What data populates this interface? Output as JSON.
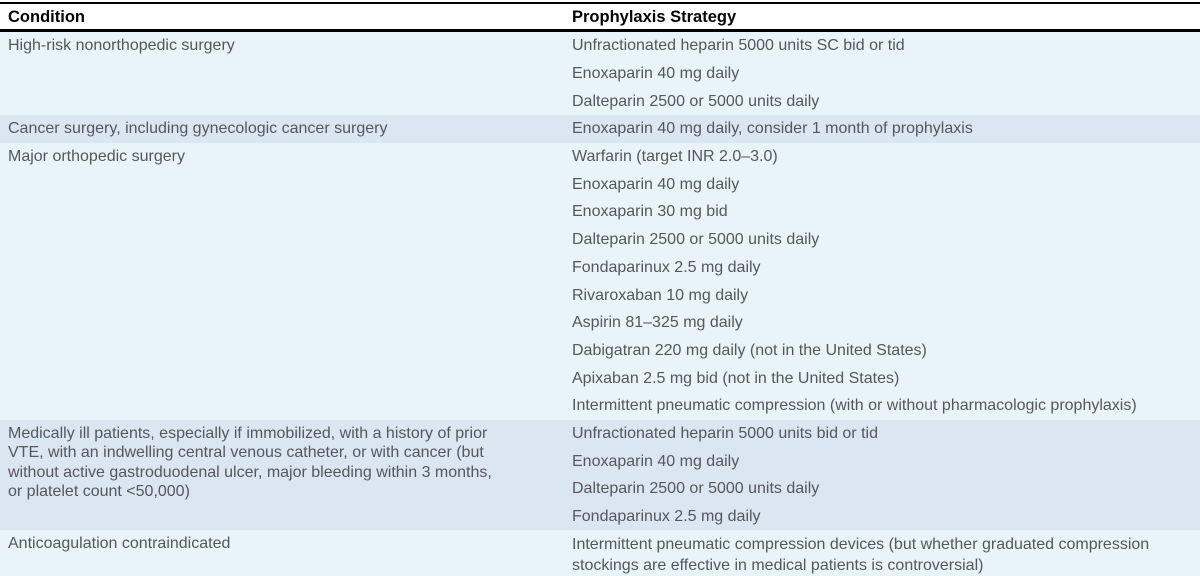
{
  "table": {
    "columns": [
      {
        "label": "Condition"
      },
      {
        "label": "Prophylaxis Strategy"
      }
    ],
    "rows": [
      {
        "condition": "High-risk nonorthopedic surgery",
        "strategies": [
          "Unfractionated heparin 5000 units SC bid or tid",
          "Enoxaparin 40 mg daily",
          "Dalteparin 2500 or 5000 units daily"
        ]
      },
      {
        "condition": "Cancer surgery, including gynecologic cancer surgery",
        "strategies": [
          "Enoxaparin 40 mg daily, consider 1 month of prophylaxis"
        ]
      },
      {
        "condition": "Major orthopedic surgery",
        "strategies": [
          "Warfarin (target INR 2.0–3.0)",
          "Enoxaparin 40 mg daily",
          "Enoxaparin 30 mg bid",
          "Dalteparin 2500 or 5000 units daily",
          "Fondaparinux 2.5 mg daily",
          "Rivaroxaban 10 mg daily",
          "Aspirin 81–325 mg daily",
          "Dabigatran 220 mg daily (not in the United States)",
          "Apixaban 2.5 mg bid (not in the United States)",
          "Intermittent pneumatic compression (with or without pharmacologic prophylaxis)"
        ]
      },
      {
        "condition": "Medically ill patients, especially if immobilized, with a history of prior VTE, with an indwelling central venous catheter, or with cancer (but without active gastroduodenal ulcer, major bleeding within 3 months, or platelet count <50,000)",
        "strategies": [
          "Unfractionated heparin 5000 units bid or tid",
          "Enoxaparin 40 mg daily",
          "Dalteparin 2500 or 5000 units daily",
          "Fondaparinux 2.5 mg daily"
        ]
      },
      {
        "condition": "Anticoagulation contraindicated",
        "strategies": [
          "Intermittent pneumatic compression devices (but whether graduated compression stockings are effective in medical patients is controversial)"
        ]
      }
    ]
  },
  "colors": {
    "row_light": "#e9f3fa",
    "row_dark": "#dbe6f3",
    "header_text": "#050505",
    "body_text": "#55575c",
    "rule": "#000000"
  }
}
